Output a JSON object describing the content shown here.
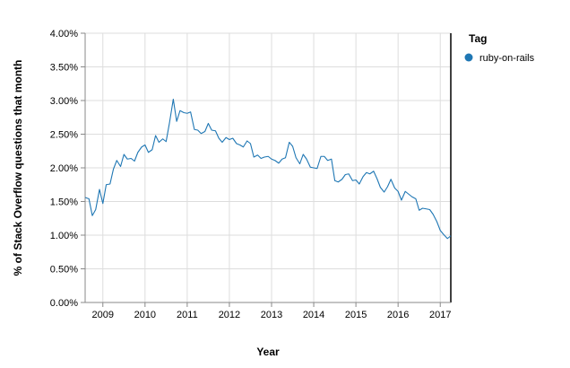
{
  "chart_data": {
    "type": "line",
    "xlabel": "Year",
    "ylabel": "% of Stack Overflow questions that month",
    "xlim": [
      2008.58,
      2017.25
    ],
    "ylim": [
      0,
      0.04
    ],
    "x_ticks": [
      2009,
      2010,
      2011,
      2012,
      2013,
      2014,
      2015,
      2016,
      2017
    ],
    "x_tick_labels": [
      "2009",
      "2010",
      "2011",
      "2012",
      "2013",
      "2014",
      "2015",
      "2016",
      "2017"
    ],
    "y_ticks": [
      0,
      0.005,
      0.01,
      0.015,
      0.02,
      0.025,
      0.03,
      0.035,
      0.04
    ],
    "y_tick_labels": [
      "0.00%",
      "0.50%",
      "1.00%",
      "1.50%",
      "2.00%",
      "2.50%",
      "3.00%",
      "3.50%",
      "4.00%"
    ],
    "grid": true,
    "legend": {
      "title": "Tag",
      "position": "right"
    },
    "series": [
      {
        "name": "ruby-on-rails",
        "color": "#1f77b4",
        "x": [
          2008.58,
          2008.67,
          2008.75,
          2008.83,
          2008.92,
          2009.0,
          2009.08,
          2009.17,
          2009.25,
          2009.33,
          2009.42,
          2009.5,
          2009.58,
          2009.67,
          2009.75,
          2009.83,
          2009.92,
          2010.0,
          2010.08,
          2010.17,
          2010.25,
          2010.33,
          2010.42,
          2010.5,
          2010.58,
          2010.67,
          2010.75,
          2010.83,
          2010.92,
          2011.0,
          2011.08,
          2011.17,
          2011.25,
          2011.33,
          2011.42,
          2011.5,
          2011.58,
          2011.67,
          2011.75,
          2011.83,
          2011.92,
          2012.0,
          2012.08,
          2012.17,
          2012.25,
          2012.33,
          2012.42,
          2012.5,
          2012.58,
          2012.67,
          2012.75,
          2012.83,
          2012.92,
          2013.0,
          2013.08,
          2013.17,
          2013.25,
          2013.33,
          2013.42,
          2013.5,
          2013.58,
          2013.67,
          2013.75,
          2013.83,
          2013.92,
          2014.0,
          2014.08,
          2014.17,
          2014.25,
          2014.33,
          2014.42,
          2014.5,
          2014.58,
          2014.67,
          2014.75,
          2014.83,
          2014.92,
          2015.0,
          2015.08,
          2015.17,
          2015.25,
          2015.33,
          2015.42,
          2015.5,
          2015.58,
          2015.67,
          2015.75,
          2015.83,
          2015.92,
          2016.0,
          2016.08,
          2016.17,
          2016.25,
          2016.33,
          2016.42,
          2016.5,
          2016.58,
          2016.67,
          2016.75,
          2016.83,
          2016.92,
          2017.0,
          2017.08,
          2017.17,
          2017.25
        ],
        "values": [
          0.0156,
          0.0154,
          0.0129,
          0.0138,
          0.0168,
          0.0147,
          0.0175,
          0.0176,
          0.0198,
          0.0211,
          0.0202,
          0.022,
          0.0213,
          0.0214,
          0.021,
          0.0223,
          0.0231,
          0.0234,
          0.0223,
          0.0227,
          0.0248,
          0.0238,
          0.0243,
          0.0239,
          0.0267,
          0.0302,
          0.0269,
          0.0285,
          0.0282,
          0.0281,
          0.0283,
          0.0257,
          0.0256,
          0.0251,
          0.0254,
          0.0266,
          0.0256,
          0.0255,
          0.0244,
          0.0238,
          0.0245,
          0.0242,
          0.0244,
          0.0236,
          0.0234,
          0.0231,
          0.024,
          0.0236,
          0.0216,
          0.0219,
          0.0214,
          0.0216,
          0.0217,
          0.0213,
          0.0211,
          0.0207,
          0.0213,
          0.0215,
          0.0238,
          0.0232,
          0.0215,
          0.0206,
          0.022,
          0.0213,
          0.0201,
          0.02,
          0.0199,
          0.0217,
          0.0217,
          0.0211,
          0.0213,
          0.0181,
          0.0179,
          0.0183,
          0.019,
          0.0191,
          0.0181,
          0.0182,
          0.0176,
          0.0187,
          0.0193,
          0.0191,
          0.0195,
          0.0184,
          0.0171,
          0.0164,
          0.0172,
          0.0183,
          0.017,
          0.0165,
          0.0152,
          0.0165,
          0.0161,
          0.0157,
          0.0154,
          0.0137,
          0.014,
          0.0139,
          0.0138,
          0.0131,
          0.012,
          0.0107,
          0.0101,
          0.0095,
          0.0099
        ]
      }
    ]
  }
}
